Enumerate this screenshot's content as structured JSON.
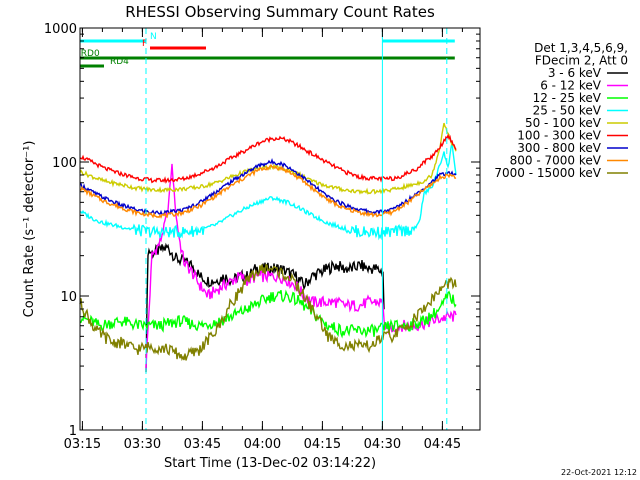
{
  "chart_data": {
    "type": "line",
    "title": "RHESSI Observing Summary Count Rates",
    "xlabel": "Start Time (13-Dec-02 03:14:22)",
    "ylabel": "Count Rate (s⁻¹ detector⁻¹)",
    "yscale": "log",
    "ylim": [
      1,
      1000
    ],
    "xlim_minutes": [
      0,
      100
    ],
    "x_ticks": [
      {
        "t": 0.6,
        "label": "03:15"
      },
      {
        "t": 15.6,
        "label": "03:30"
      },
      {
        "t": 30.6,
        "label": "03:45"
      },
      {
        "t": 45.6,
        "label": "04:00"
      },
      {
        "t": 60.6,
        "label": "04:15"
      },
      {
        "t": 75.6,
        "label": "04:30"
      },
      {
        "t": 90.6,
        "label": "04:45"
      }
    ],
    "y_ticks": [
      {
        "v": 1,
        "label": "1"
      },
      {
        "v": 10,
        "label": "10"
      },
      {
        "v": 100,
        "label": "100"
      },
      {
        "v": 1000,
        "label": "1000"
      }
    ],
    "legend_header": [
      "Det 1,3,4,5,6,9,",
      "FDecim 2, Att 0"
    ],
    "legend_position": "right",
    "grid": false,
    "series": [
      {
        "name": "3 - 6 keV",
        "color": "#000000",
        "points": [
          [
            16.5,
            3
          ],
          [
            17,
            22
          ],
          [
            18,
            21
          ],
          [
            20,
            22
          ],
          [
            22,
            23
          ],
          [
            24,
            19
          ],
          [
            26,
            18
          ],
          [
            28,
            17
          ],
          [
            30,
            14
          ],
          [
            32,
            13
          ],
          [
            34,
            13
          ],
          [
            36,
            14
          ],
          [
            38,
            13
          ],
          [
            40,
            14
          ],
          [
            42,
            14
          ],
          [
            44,
            16
          ],
          [
            46,
            16
          ],
          [
            48,
            16
          ],
          [
            50,
            16
          ],
          [
            52,
            15
          ],
          [
            54,
            14
          ],
          [
            56,
            12
          ],
          [
            58,
            14
          ],
          [
            60,
            15
          ],
          [
            62,
            16
          ],
          [
            64,
            17
          ],
          [
            66,
            16
          ],
          [
            68,
            16
          ],
          [
            70,
            17
          ],
          [
            72,
            16
          ],
          [
            74,
            16
          ],
          [
            75.8,
            15
          ],
          [
            76.2,
            4
          ]
        ]
      },
      {
        "name": "6 - 12 keV",
        "color": "#ff00ff",
        "points": [
          [
            16.5,
            3
          ],
          [
            18,
            20
          ],
          [
            20,
            25
          ],
          [
            22,
            45
          ],
          [
            23,
            95
          ],
          [
            24,
            40
          ],
          [
            25,
            25
          ],
          [
            26,
            18
          ],
          [
            28,
            15
          ],
          [
            30,
            12
          ],
          [
            32,
            10
          ],
          [
            34,
            11
          ],
          [
            36,
            12
          ],
          [
            38,
            13
          ],
          [
            40,
            14
          ],
          [
            42,
            13
          ],
          [
            44,
            14
          ],
          [
            46,
            14
          ],
          [
            48,
            14
          ],
          [
            50,
            14
          ],
          [
            52,
            13
          ],
          [
            54,
            12
          ],
          [
            56,
            10
          ],
          [
            58,
            9
          ],
          [
            60,
            9
          ],
          [
            62,
            9
          ],
          [
            64,
            9
          ],
          [
            66,
            8.5
          ],
          [
            68,
            8.5
          ],
          [
            70,
            8.5
          ],
          [
            72,
            9
          ],
          [
            74,
            9
          ],
          [
            75.8,
            9
          ],
          [
            76.2,
            5.5
          ],
          [
            80,
            6
          ],
          [
            84,
            6
          ],
          [
            88,
            6.5
          ],
          [
            92,
            7
          ],
          [
            94,
            7
          ]
        ]
      },
      {
        "name": "12 - 25 keV",
        "color": "#00ff00",
        "points": [
          [
            0,
            7
          ],
          [
            5,
            6
          ],
          [
            10,
            6.5
          ],
          [
            15,
            6
          ],
          [
            20,
            6
          ],
          [
            25,
            6.5
          ],
          [
            30,
            6
          ],
          [
            35,
            6.5
          ],
          [
            40,
            7.5
          ],
          [
            45,
            9
          ],
          [
            48,
            10
          ],
          [
            50,
            10
          ],
          [
            52,
            10
          ],
          [
            55,
            9
          ],
          [
            58,
            7.5
          ],
          [
            62,
            6
          ],
          [
            66,
            5.5
          ],
          [
            70,
            5.5
          ],
          [
            74,
            5.5
          ],
          [
            78,
            6
          ],
          [
            82,
            6
          ],
          [
            86,
            6.5
          ],
          [
            90,
            8
          ],
          [
            92,
            10
          ],
          [
            94,
            9
          ]
        ]
      },
      {
        "name": "25 - 50 keV",
        "color": "#00ffff",
        "points": [
          [
            0,
            43
          ],
          [
            3,
            38
          ],
          [
            6,
            35
          ],
          [
            10,
            33
          ],
          [
            14,
            31
          ],
          [
            18,
            30
          ],
          [
            22,
            30
          ],
          [
            26,
            30
          ],
          [
            30,
            31
          ],
          [
            34,
            34
          ],
          [
            38,
            40
          ],
          [
            42,
            46
          ],
          [
            46,
            52
          ],
          [
            48,
            54
          ],
          [
            50,
            52
          ],
          [
            52,
            50
          ],
          [
            55,
            45
          ],
          [
            58,
            40
          ],
          [
            62,
            35
          ],
          [
            66,
            32
          ],
          [
            70,
            30
          ],
          [
            74,
            30
          ],
          [
            78,
            30
          ],
          [
            82,
            31
          ],
          [
            84,
            32
          ],
          [
            85,
            38
          ],
          [
            86,
            58
          ],
          [
            88,
            65
          ],
          [
            90,
            95
          ],
          [
            91,
            120
          ],
          [
            92,
            90
          ],
          [
            93,
            140
          ],
          [
            94,
            80
          ]
        ]
      },
      {
        "name": "50 - 100 keV",
        "color": "#cccc00",
        "points": [
          [
            0,
            85
          ],
          [
            3,
            78
          ],
          [
            6,
            72
          ],
          [
            10,
            68
          ],
          [
            14,
            64
          ],
          [
            18,
            62
          ],
          [
            22,
            62
          ],
          [
            26,
            63
          ],
          [
            30,
            65
          ],
          [
            34,
            70
          ],
          [
            38,
            78
          ],
          [
            42,
            86
          ],
          [
            45,
            90
          ],
          [
            48,
            92
          ],
          [
            50,
            90
          ],
          [
            52,
            87
          ],
          [
            55,
            80
          ],
          [
            58,
            72
          ],
          [
            62,
            66
          ],
          [
            66,
            62
          ],
          [
            70,
            60
          ],
          [
            74,
            60
          ],
          [
            78,
            62
          ],
          [
            82,
            66
          ],
          [
            86,
            72
          ],
          [
            88,
            80
          ],
          [
            90,
            130
          ],
          [
            91,
            200
          ],
          [
            92,
            160
          ],
          [
            94,
            120
          ]
        ]
      },
      {
        "name": "100 - 300 keV",
        "color": "#ff0000",
        "points": [
          [
            0,
            110
          ],
          [
            3,
            100
          ],
          [
            6,
            90
          ],
          [
            10,
            82
          ],
          [
            14,
            76
          ],
          [
            18,
            73
          ],
          [
            22,
            73
          ],
          [
            26,
            75
          ],
          [
            30,
            82
          ],
          [
            34,
            92
          ],
          [
            38,
            108
          ],
          [
            42,
            125
          ],
          [
            45,
            140
          ],
          [
            48,
            150
          ],
          [
            50,
            150
          ],
          [
            52,
            145
          ],
          [
            55,
            130
          ],
          [
            58,
            115
          ],
          [
            62,
            98
          ],
          [
            66,
            85
          ],
          [
            70,
            77
          ],
          [
            74,
            75
          ],
          [
            78,
            75
          ],
          [
            80,
            78
          ],
          [
            84,
            88
          ],
          [
            86,
            100
          ],
          [
            88,
            110
          ],
          [
            90,
            130
          ],
          [
            92,
            160
          ],
          [
            93,
            140
          ],
          [
            94,
            125
          ]
        ]
      },
      {
        "name": "300 - 800 keV",
        "color": "#0000cc",
        "points": [
          [
            0,
            68
          ],
          [
            3,
            60
          ],
          [
            6,
            54
          ],
          [
            10,
            48
          ],
          [
            14,
            44
          ],
          [
            18,
            42
          ],
          [
            22,
            42
          ],
          [
            24,
            43
          ],
          [
            26,
            44
          ],
          [
            30,
            50
          ],
          [
            34,
            60
          ],
          [
            38,
            72
          ],
          [
            42,
            85
          ],
          [
            45,
            95
          ],
          [
            48,
            100
          ],
          [
            50,
            98
          ],
          [
            52,
            92
          ],
          [
            55,
            80
          ],
          [
            58,
            68
          ],
          [
            62,
            55
          ],
          [
            66,
            48
          ],
          [
            70,
            44
          ],
          [
            74,
            42
          ],
          [
            78,
            44
          ],
          [
            82,
            52
          ],
          [
            86,
            64
          ],
          [
            90,
            80
          ],
          [
            92,
            83
          ],
          [
            94,
            80
          ]
        ]
      },
      {
        "name": "800 - 7000 keV",
        "color": "#ff8800",
        "points": [
          [
            0,
            64
          ],
          [
            3,
            57
          ],
          [
            6,
            51
          ],
          [
            10,
            46
          ],
          [
            14,
            42
          ],
          [
            18,
            40
          ],
          [
            22,
            40
          ],
          [
            26,
            42
          ],
          [
            30,
            47
          ],
          [
            34,
            56
          ],
          [
            38,
            67
          ],
          [
            42,
            79
          ],
          [
            45,
            88
          ],
          [
            48,
            92
          ],
          [
            50,
            90
          ],
          [
            52,
            85
          ],
          [
            55,
            75
          ],
          [
            58,
            64
          ],
          [
            62,
            52
          ],
          [
            66,
            45
          ],
          [
            70,
            42
          ],
          [
            74,
            40
          ],
          [
            78,
            42
          ],
          [
            82,
            50
          ],
          [
            86,
            62
          ],
          [
            90,
            76
          ],
          [
            92,
            80
          ],
          [
            94,
            78
          ]
        ]
      },
      {
        "name": "7000 - 15000 keV",
        "color": "#808000",
        "points": [
          [
            0,
            9
          ],
          [
            2,
            7
          ],
          [
            4,
            5.5
          ],
          [
            6,
            5
          ],
          [
            8,
            4.5
          ],
          [
            10,
            4.5
          ],
          [
            14,
            4
          ],
          [
            18,
            4.2
          ],
          [
            22,
            4
          ],
          [
            26,
            3.5
          ],
          [
            30,
            4
          ],
          [
            34,
            5.5
          ],
          [
            36,
            7
          ],
          [
            38,
            9
          ],
          [
            40,
            11
          ],
          [
            42,
            13
          ],
          [
            44,
            15
          ],
          [
            46,
            16
          ],
          [
            48,
            16
          ],
          [
            50,
            15
          ],
          [
            52,
            14
          ],
          [
            54,
            12
          ],
          [
            56,
            10
          ],
          [
            58,
            8
          ],
          [
            60,
            6.5
          ],
          [
            62,
            5
          ],
          [
            64,
            4.5
          ],
          [
            68,
            4.2
          ],
          [
            72,
            4.2
          ],
          [
            74,
            4.5
          ],
          [
            76,
            5
          ],
          [
            78,
            5
          ],
          [
            80,
            5.5
          ],
          [
            82,
            6
          ],
          [
            84,
            7
          ],
          [
            86,
            8
          ],
          [
            88,
            9.5
          ],
          [
            90,
            11
          ],
          [
            92,
            12.5
          ],
          [
            94,
            12
          ]
        ]
      }
    ],
    "attenuator_markers": [
      {
        "t": 16.5,
        "color": "#00ffff",
        "style": "dashed"
      },
      {
        "t": 75.6,
        "color": "#00ffff",
        "style": "solid"
      },
      {
        "t": 91.7,
        "color": "#00ffff",
        "style": "dashed"
      }
    ],
    "status_bars": [
      {
        "label": "N",
        "color": "#00ffff",
        "segments": [
          [
            0,
            16.5
          ],
          [
            75.6,
            93.7
          ]
        ],
        "level": "top",
        "label_at": 17.5
      },
      {
        "label": "F",
        "color": "#ff0000",
        "segments": [
          [
            17.5,
            31.5
          ]
        ],
        "level": "second",
        "label_at": 15.5
      },
      {
        "label": "RD0",
        "color": "#008000",
        "segments": [
          [
            0,
            31.5
          ],
          [
            31.5,
            54
          ],
          [
            54,
            75.6
          ],
          [
            75.6,
            93.7
          ]
        ],
        "level": "third",
        "label_at": 0.2
      },
      {
        "label": "RD4",
        "color": "#008000",
        "segments": [
          [
            0,
            6
          ]
        ],
        "level": "fourth",
        "label_at": 7.5
      }
    ],
    "footer_note": "22-Oct-2021 12:12"
  }
}
